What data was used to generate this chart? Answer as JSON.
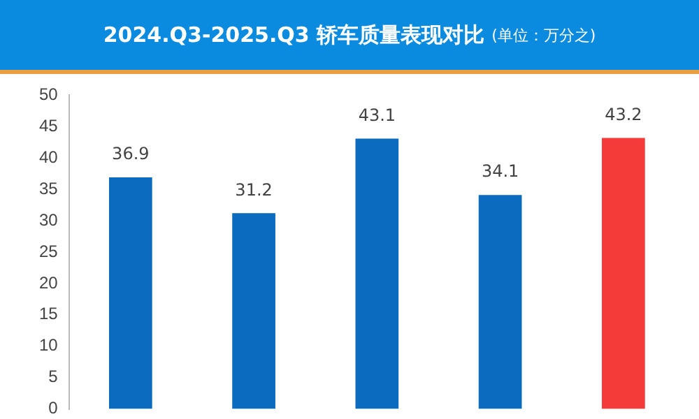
{
  "chart_data": {
    "type": "bar",
    "title": "2024.Q3-2025.Q3 轿车质量表现对比",
    "subtitle": "(单位：万分之)",
    "categories": [
      null,
      null,
      null,
      null,
      null
    ],
    "values": [
      36.9,
      31.2,
      43.1,
      34.1,
      43.2
    ],
    "colors": [
      "#0a6bbf",
      "#0a6bbf",
      "#0a6bbf",
      "#0a6bbf",
      "#f53a3a"
    ],
    "ylim": [
      0,
      50
    ],
    "yticks": [
      0,
      5,
      10,
      15,
      20,
      25,
      30,
      35,
      40,
      45,
      50
    ],
    "grid": false,
    "data_labels": true
  }
}
